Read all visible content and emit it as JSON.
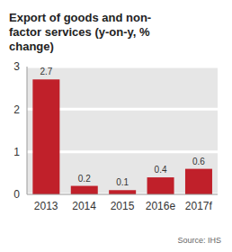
{
  "chart_data": {
    "type": "bar",
    "title": "Export of goods and non-factor services (y-on-y, % change)",
    "categories": [
      "2013",
      "2014",
      "2015",
      "2016e",
      "2017f"
    ],
    "values": [
      2.7,
      0.2,
      0.1,
      0.4,
      0.6
    ],
    "color": "#c0202a",
    "ylim": [
      0,
      3
    ],
    "yticks": [
      0,
      1,
      2,
      3
    ],
    "grid": true,
    "data_labels": true,
    "source": "Source: IHS"
  }
}
